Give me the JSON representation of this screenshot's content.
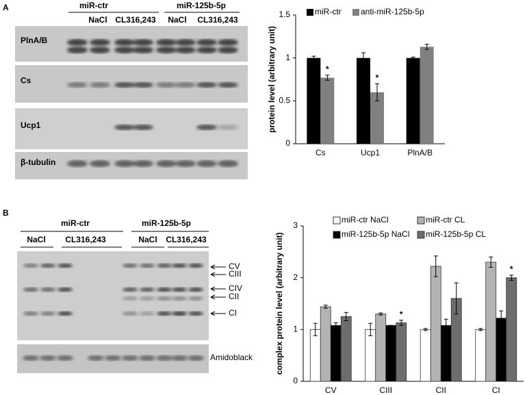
{
  "figure": {
    "panel_a": {
      "letter": "A",
      "groups": [
        "miR-ctr",
        "miR-125b-5p"
      ],
      "conditions": [
        "NaCl",
        "CL316,243",
        "NaCl",
        "CL316,243"
      ],
      "rows": [
        "PlnA/B",
        "Cs",
        "Ucp1",
        "β-tubulin"
      ]
    },
    "panel_b": {
      "letter": "B",
      "groups": [
        "miR-ctr",
        "miR-125b-5p"
      ],
      "conditions": [
        "NaCl",
        "CL316,243",
        "NaCl",
        "CL316,243"
      ],
      "complexes": [
        "CV",
        "CIII",
        "CIV",
        "CII",
        "CI"
      ],
      "loading": "Amidoblack"
    }
  },
  "chart_data": [
    {
      "type": "bar",
      "y_label": "protein level (arbitrary unit)",
      "categories": [
        "Cs",
        "Ucp1",
        "PlnA/B"
      ],
      "series": [
        {
          "name": "miR-ctr",
          "color": "#000000",
          "values": [
            1.0,
            1.0,
            1.0
          ],
          "errors": [
            0.02,
            0.06,
            0.01
          ]
        },
        {
          "name": "anti-miR-125b-5p",
          "color": "#808080",
          "values": [
            0.77,
            0.6,
            1.13
          ],
          "errors": [
            0.03,
            0.1,
            0.03
          ]
        }
      ],
      "annotations": [
        {
          "text": "*",
          "category": 0,
          "series": 1
        },
        {
          "text": "*",
          "category": 1,
          "series": 1
        }
      ],
      "ylim": [
        0,
        1.5
      ],
      "yticks": [
        0,
        0.5,
        1,
        1.5
      ],
      "legend": "top"
    },
    {
      "type": "bar",
      "y_label": "complex protein level (arbitrary unit)",
      "categories": [
        "CV",
        "CIII",
        "CII",
        "CI"
      ],
      "bar_edge": "#333333",
      "series": [
        {
          "name": "miR-ctr NaCl",
          "color": "#ffffff",
          "values": [
            1.0,
            1.0,
            1.0,
            1.0
          ],
          "errors": [
            0.12,
            0.12,
            0.02,
            0.02
          ]
        },
        {
          "name": "miR-ctr CL",
          "color": "#b3b3b3",
          "values": [
            1.44,
            1.3,
            2.22,
            2.3
          ],
          "errors": [
            0.03,
            0.02,
            0.2,
            0.1
          ]
        },
        {
          "name": "miR-125b-5p NaCl",
          "color": "#000000",
          "values": [
            1.08,
            1.08,
            1.08,
            1.22
          ],
          "errors": [
            0.05,
            0,
            0.12,
            0.14
          ]
        },
        {
          "name": "miR-125b-5p CL",
          "color": "#6d6d6d",
          "values": [
            1.25,
            1.13,
            1.6,
            2.0
          ],
          "errors": [
            0.08,
            0.05,
            0.3,
            0.05
          ]
        }
      ],
      "annotations": [
        {
          "text": "*",
          "category": 1,
          "series": 3
        },
        {
          "text": "*",
          "category": 3,
          "series": 3
        }
      ],
      "ylim": [
        0,
        3
      ],
      "yticks": [
        0,
        1,
        2,
        3
      ],
      "legend": "top"
    }
  ]
}
